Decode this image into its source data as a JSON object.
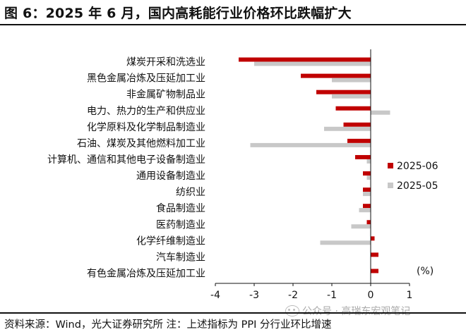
{
  "header": {
    "title": "图 6：2025 年 6 月，国内高耗能行业价格环比跌幅扩大"
  },
  "footer": {
    "source": "资料来源：Wind，光大证券研究所 注：上述指标为 PPI 分行业环比增速",
    "watermark": "公众号 · 高瑞东宏观笔记"
  },
  "chart_data": {
    "type": "bar",
    "orientation": "horizontal",
    "categories": [
      "煤炭开采和洗选业",
      "黑色金属冶炼及压延加工业",
      "非金属矿物制品业",
      "电力、热力的生产和供应业",
      "化学原料及化学制品制造业",
      "石油、煤炭及其他燃料加工业",
      "计算机、通信和其他电子设备制造业",
      "通用设备制造业",
      "纺织业",
      "食品制造业",
      "医药制造业",
      "化学纤维制造业",
      "汽车制造业",
      "有色金属冶炼及压延加工业"
    ],
    "series": [
      {
        "name": "2025-06",
        "color": "#c00000",
        "values": [
          -3.4,
          -1.8,
          -1.4,
          -0.9,
          -0.7,
          -0.6,
          -0.4,
          -0.2,
          -0.2,
          -0.2,
          -0.1,
          0.1,
          0.2,
          0.2
        ]
      },
      {
        "name": "2025-05",
        "color": "#c8c8c8",
        "values": [
          -3.0,
          -1.0,
          -1.0,
          0.5,
          -1.2,
          -3.1,
          -0.1,
          -0.1,
          -0.2,
          -0.3,
          -0.5,
          -1.3,
          0.0,
          0.0
        ]
      }
    ],
    "xlim": [
      -4,
      1
    ],
    "xticks": [
      "-4",
      "-3",
      "-2",
      "-1",
      "0",
      "1"
    ],
    "unit_label": "(%)",
    "legend_position": "right",
    "grid": false
  }
}
